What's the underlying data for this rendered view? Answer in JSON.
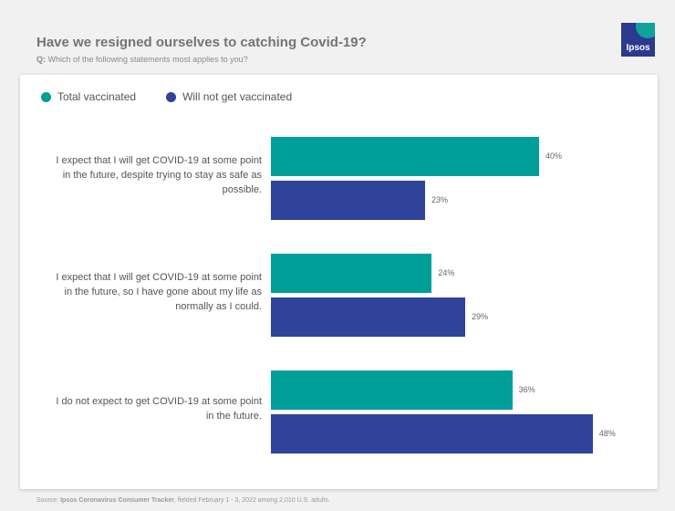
{
  "header": {
    "title": "Have we resigned ourselves to catching Covid-19?",
    "question_prefix": "Q:",
    "question": "Which of the following statements most applies to you?"
  },
  "logo": {
    "text": "Ipsos",
    "colors": {
      "background": "#2b3a8f",
      "accent": "#0fa29a"
    }
  },
  "footer": {
    "source_prefix": "Source:",
    "source_name": "Ipsos Coronavirus Consumer Tracker",
    "source_detail": ", fielded February 1 - 3, 2022 among 2,010 U.S. adults."
  },
  "chart_data": {
    "type": "bar",
    "orientation": "horizontal",
    "title": "Have we resigned ourselves to catching Covid-19?",
    "categories": [
      "I expect that I will get COVID-19 at some point in the future, despite trying to stay as safe as possible.",
      "I expect that I will get COVID-19 at some point in the future, so I have gone about my life as normally as I could.",
      "I do not expect to get COVID-19 at some point in the future."
    ],
    "series": [
      {
        "name": "Total vaccinated",
        "color": "#009e99",
        "values": [
          40,
          24,
          36
        ]
      },
      {
        "name": "Will not get vaccinated",
        "color": "#2e4399",
        "values": [
          23,
          29,
          48
        ]
      }
    ],
    "value_suffix": "%",
    "xlim": [
      0,
      100
    ],
    "grid": false,
    "legend_position": "top-left"
  }
}
